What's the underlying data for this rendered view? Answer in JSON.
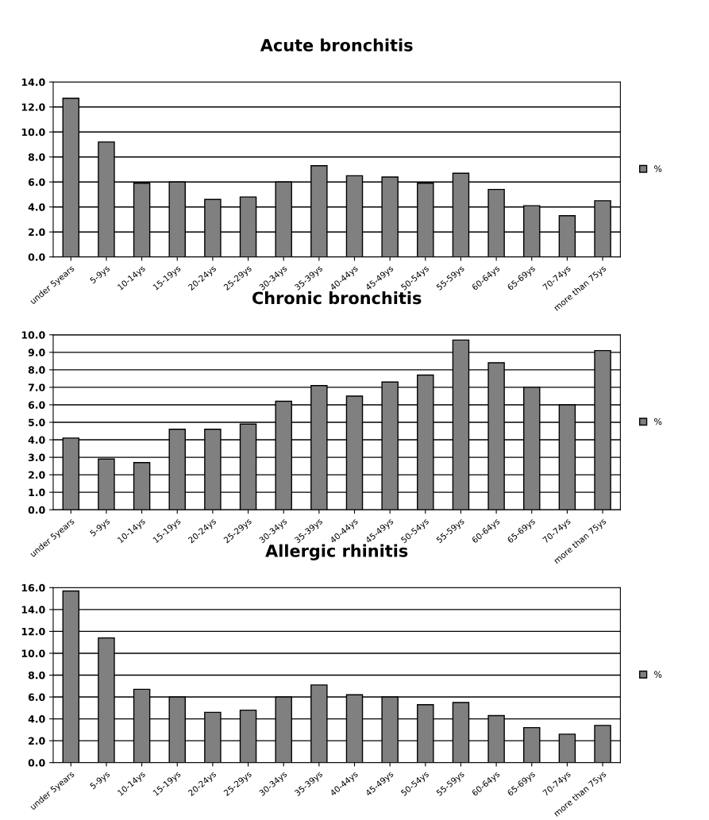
{
  "chart_data": [
    {
      "type": "bar",
      "title": "Acute bronchitis",
      "categories": [
        "under 5years",
        "5-9ys",
        "10-14ys",
        "15-19ys",
        "20-24ys",
        "25-29ys",
        "30-34ys",
        "35-39ys",
        "40-44ys",
        "45-49ys",
        "50-54ys",
        "55-59ys",
        "60-64ys",
        "65-69ys",
        "70-74ys",
        "more than 75ys"
      ],
      "series": [
        {
          "name": "%",
          "color": "#808080",
          "values": [
            12.7,
            9.2,
            5.9,
            6.0,
            4.6,
            4.8,
            6.0,
            7.3,
            6.5,
            6.4,
            5.9,
            6.7,
            5.4,
            4.1,
            3.3,
            4.5
          ]
        }
      ],
      "ylim": [
        0,
        14
      ],
      "yticks": [
        {
          "value": 0,
          "label": "0.0"
        },
        {
          "value": 2,
          "label": "2.0"
        },
        {
          "value": 4,
          "label": "4.0"
        },
        {
          "value": 6,
          "label": "6.0"
        },
        {
          "value": 8,
          "label": "8.0"
        },
        {
          "value": 10,
          "label": "10.0"
        },
        {
          "value": 12,
          "label": "12.0"
        },
        {
          "value": 14,
          "label": "14.0"
        }
      ],
      "grid": "y",
      "legend": "right"
    },
    {
      "type": "bar",
      "title": "Chronic bronchitis",
      "categories": [
        "under 5years",
        "5-9ys",
        "10-14ys",
        "15-19ys",
        "20-24ys",
        "25-29ys",
        "30-34ys",
        "35-39ys",
        "40-44ys",
        "45-49ys",
        "50-54ys",
        "55-59ys",
        "60-64ys",
        "65-69ys",
        "70-74ys",
        "more than 75ys"
      ],
      "series": [
        {
          "name": "%",
          "color": "#808080",
          "values": [
            4.1,
            2.9,
            2.7,
            4.6,
            4.6,
            4.9,
            6.2,
            7.1,
            6.5,
            7.3,
            7.7,
            9.7,
            8.4,
            7.0,
            6.0,
            9.1
          ]
        }
      ],
      "ylim": [
        0,
        10
      ],
      "yticks": [
        {
          "value": 0,
          "label": "0.0"
        },
        {
          "value": 1,
          "label": "1.0"
        },
        {
          "value": 2,
          "label": "2.0"
        },
        {
          "value": 3,
          "label": "3.0"
        },
        {
          "value": 4,
          "label": "4.0"
        },
        {
          "value": 5,
          "label": "5.0"
        },
        {
          "value": 6,
          "label": "6.0"
        },
        {
          "value": 7,
          "label": "7.0"
        },
        {
          "value": 8,
          "label": "8.0"
        },
        {
          "value": 9,
          "label": "9.0"
        },
        {
          "value": 10,
          "label": "10.0"
        }
      ],
      "grid": "y",
      "legend": "right"
    },
    {
      "type": "bar",
      "title": "Allergic rhinitis",
      "categories": [
        "under 5years",
        "5-9ys",
        "10-14ys",
        "15-19ys",
        "20-24ys",
        "25-29ys",
        "30-34ys",
        "35-39ys",
        "40-44ys",
        "45-49ys",
        "50-54ys",
        "55-59ys",
        "60-64ys",
        "65-69ys",
        "70-74ys",
        "more than 75ys"
      ],
      "series": [
        {
          "name": "%",
          "color": "#808080",
          "values": [
            15.7,
            11.4,
            6.7,
            6.0,
            4.6,
            4.8,
            6.0,
            7.1,
            6.2,
            6.0,
            5.3,
            5.5,
            4.3,
            3.2,
            2.6,
            3.4
          ]
        }
      ],
      "ylim": [
        0,
        16
      ],
      "yticks": [
        {
          "value": 0,
          "label": "0.0"
        },
        {
          "value": 2,
          "label": "2.0"
        },
        {
          "value": 4,
          "label": "4.0"
        },
        {
          "value": 6,
          "label": "6.0"
        },
        {
          "value": 8,
          "label": "8.0"
        },
        {
          "value": 10,
          "label": "10.0"
        },
        {
          "value": 12,
          "label": "12.0"
        },
        {
          "value": 14,
          "label": "14.0"
        },
        {
          "value": 16,
          "label": "16.0"
        }
      ],
      "grid": "y",
      "legend": "right"
    }
  ]
}
